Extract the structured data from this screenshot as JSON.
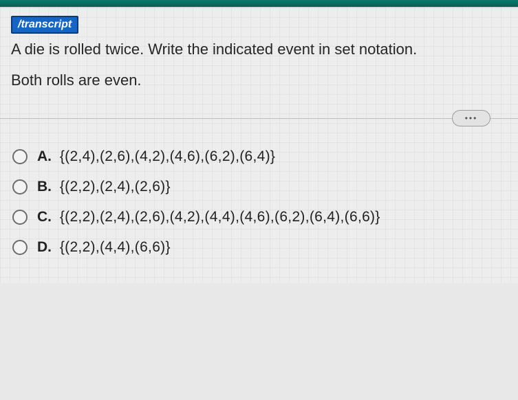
{
  "colors": {
    "topbar": "#0b7a6a",
    "tag_bg": "#1566c4",
    "tag_fg": "#ffffff",
    "text": "#262626",
    "grid_bg": "#ededed",
    "grid_line": "rgba(0,0,0,0.04)",
    "radio_border": "#6c6c6c",
    "divider": "#bfbfbf"
  },
  "tag": "/transcript",
  "question": "A die is rolled twice. Write the indicated event in set notation.",
  "subquestion": "Both rolls are even.",
  "more_label": "•••",
  "options": [
    {
      "letter": "A.",
      "text": "{(2,4),(2,6),(4,2),(4,6),(6,2),(6,4)}"
    },
    {
      "letter": "B.",
      "text": "{(2,2),(2,4),(2,6)}"
    },
    {
      "letter": "C.",
      "text": "{(2,2),(2,4),(2,6),(4,2),(4,4),(4,6),(6,2),(6,4),(6,6)}"
    },
    {
      "letter": "D.",
      "text": "{(2,2),(4,4),(6,6)}"
    }
  ]
}
